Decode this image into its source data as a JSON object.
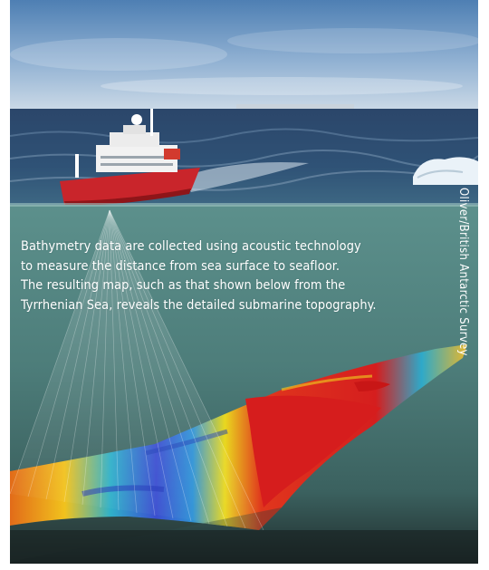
{
  "caption": {
    "lines": [
      "Bathymetry data are collected using acoustic technology",
      "to measure the distance from sea surface to seafloor.",
      "The resulting map, such as that shown below from the",
      "Tyrrhenian Sea, reveals the detailed submarine topography."
    ]
  },
  "credit": "Oliver/British Antarctic Survey",
  "colors": {
    "sky": "#7ea2c7",
    "ocean_surface": "#2f4d6e",
    "underwater": "#4f7f7b",
    "ship_hull": "#c9252b",
    "seafloor_shallow": "#d8201f",
    "seafloor_deep": "#2f3fd0"
  }
}
